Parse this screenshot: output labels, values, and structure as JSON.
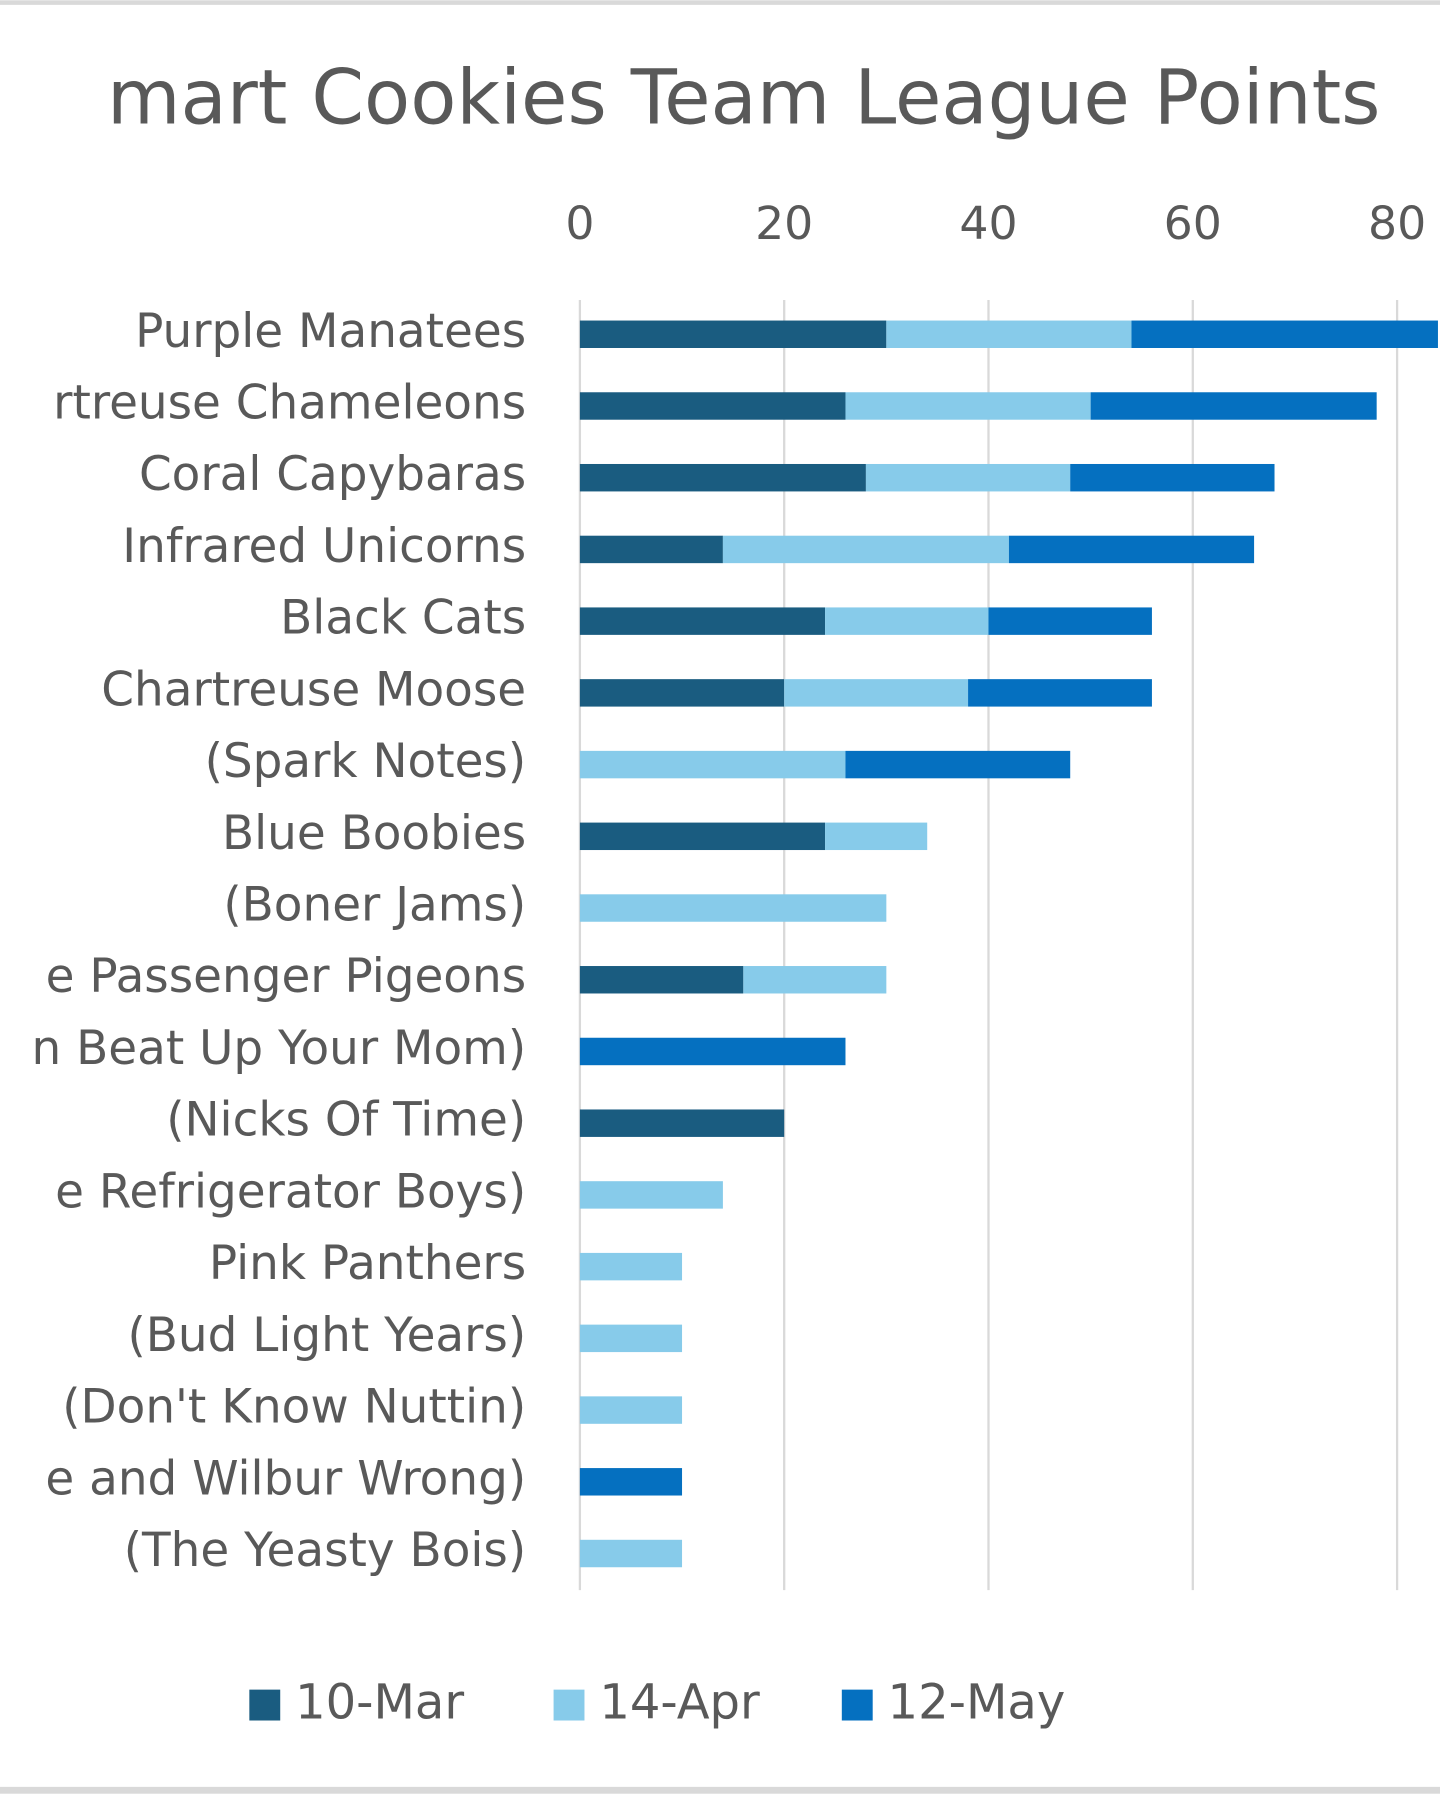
{
  "chart_data": {
    "type": "stacked-barh",
    "title": "mart Cookies Team League Points",
    "categories": [
      "Purple Manatees",
      "rtreuse Chameleons",
      "Coral Capybaras",
      "Infrared Unicorns",
      "Black Cats",
      "Chartreuse Moose",
      "(Spark Notes)",
      "Blue Boobies",
      "(Boner Jams)",
      "e Passenger Pigeons",
      "n Beat Up Your Mom)",
      "(Nicks Of Time)",
      "e Refrigerator Boys)",
      "Pink Panthers",
      "(Bud Light Years)",
      "(Don't Know Nuttin)",
      "e and Wilbur Wrong)",
      "(The Yeasty Bois)"
    ],
    "series": [
      {
        "name": "10-Mar",
        "color": "#1a5c80",
        "values": [
          30,
          26,
          28,
          14,
          24,
          20,
          null,
          24,
          null,
          16,
          null,
          20,
          null,
          null,
          null,
          null,
          null,
          null
        ]
      },
      {
        "name": "14-Apr",
        "color": "#87cbea",
        "values": [
          24,
          24,
          20,
          28,
          16,
          18,
          26,
          10,
          30,
          14,
          null,
          null,
          14,
          10,
          10,
          10,
          null,
          10
        ]
      },
      {
        "name": "12-May",
        "color": "#0570c0",
        "values": [
          30,
          28,
          20,
          24,
          16,
          18,
          22,
          null,
          null,
          null,
          26,
          null,
          null,
          null,
          null,
          null,
          10,
          null
        ]
      }
    ],
    "xlim": [
      0,
      84.2
    ],
    "xticks": [
      0,
      20,
      40,
      60,
      80
    ],
    "grid": true,
    "legend": "bottom"
  }
}
